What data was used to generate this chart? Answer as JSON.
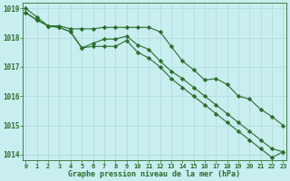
{
  "title": "Graphe pression niveau de la mer (hPa)",
  "bg_color": "#c8eef0",
  "grid_color": "#b0d8dc",
  "line_color": "#2a6e2a",
  "line1": [
    1018.85,
    1018.6,
    1018.4,
    1018.4,
    1018.3,
    1018.3,
    1018.3,
    1018.35,
    1018.35,
    1018.35,
    1018.35,
    1018.35,
    1018.2,
    1017.7,
    1017.2,
    1016.9,
    1016.55,
    1016.6,
    1016.4,
    1016.0,
    1015.9,
    1015.55,
    1015.3,
    1015.0
  ],
  "line2": [
    1018.85,
    1018.6,
    1018.4,
    1018.35,
    1018.2,
    1017.65,
    1017.8,
    1017.95,
    1017.95,
    1018.05,
    1017.75,
    1017.6,
    1017.2,
    1016.85,
    1016.6,
    1016.3,
    1016.0,
    1015.7,
    1015.4,
    1015.1,
    1014.8,
    1014.5,
    1014.2,
    1014.1
  ],
  "line3": [
    1019.0,
    1018.7,
    1018.4,
    1018.35,
    1018.2,
    1017.65,
    1017.7,
    1017.7,
    1017.7,
    1017.9,
    1017.5,
    1017.3,
    1017.0,
    1016.6,
    1016.3,
    1016.0,
    1015.7,
    1015.4,
    1015.1,
    1014.8,
    1014.5,
    1014.2,
    1013.9,
    1014.1
  ],
  "ylim": [
    1013.8,
    1019.2
  ],
  "yticks": [
    1014,
    1015,
    1016,
    1017,
    1018,
    1019
  ],
  "xticks": [
    0,
    1,
    2,
    3,
    4,
    5,
    6,
    7,
    8,
    9,
    10,
    11,
    12,
    13,
    14,
    15,
    16,
    17,
    18,
    19,
    20,
    21,
    22,
    23
  ],
  "figwidth": 3.2,
  "figheight": 2.0,
  "dpi": 100
}
